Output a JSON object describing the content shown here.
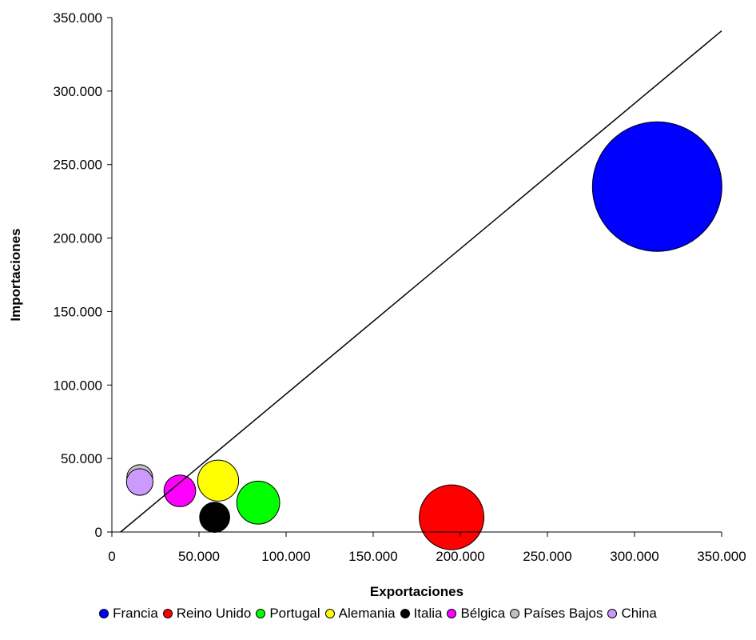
{
  "chart_data": {
    "type": "scatter",
    "subtype": "bubble",
    "title": "",
    "xlabel": "Exportaciones",
    "ylabel": "Importaciones",
    "xlim": [
      0,
      350000
    ],
    "ylim": [
      0,
      350000
    ],
    "x_ticks": [
      "0",
      "50.000",
      "100.000",
      "150.000",
      "200.000",
      "250.000",
      "300.000",
      "350.000"
    ],
    "y_ticks": [
      "0",
      "50.000",
      "100.000",
      "150.000",
      "200.000",
      "250.000",
      "300.000",
      "350.000"
    ],
    "grid": false,
    "legend_position": "bottom",
    "reference_line": {
      "x": [
        5000,
        350000
      ],
      "y": [
        0,
        341000
      ],
      "color": "#000000"
    },
    "series": [
      {
        "name": "Francia",
        "x": 313000,
        "y": 235000,
        "size": 100,
        "color": "#0000ff"
      },
      {
        "name": "Reino Unido",
        "x": 195000,
        "y": 10000,
        "size": 25,
        "color": "#ff0000"
      },
      {
        "name": "Portugal",
        "x": 84000,
        "y": 20000,
        "size": 11,
        "color": "#00ff00"
      },
      {
        "name": "Alemania",
        "x": 61000,
        "y": 35000,
        "size": 10,
        "color": "#ffff00"
      },
      {
        "name": "Italia",
        "x": 59000,
        "y": 10000,
        "size": 5.4,
        "color": "#000000"
      },
      {
        "name": "Bélgica",
        "x": 39000,
        "y": 28000,
        "size": 6.0,
        "color": "#ff00ff"
      },
      {
        "name": "Países Bajos",
        "x": 16000,
        "y": 37000,
        "size": 4.0,
        "color": "#c0c0c0"
      },
      {
        "name": "China",
        "x": 16000,
        "y": 34000,
        "size": 4.2,
        "color": "#cc99ff"
      }
    ]
  }
}
